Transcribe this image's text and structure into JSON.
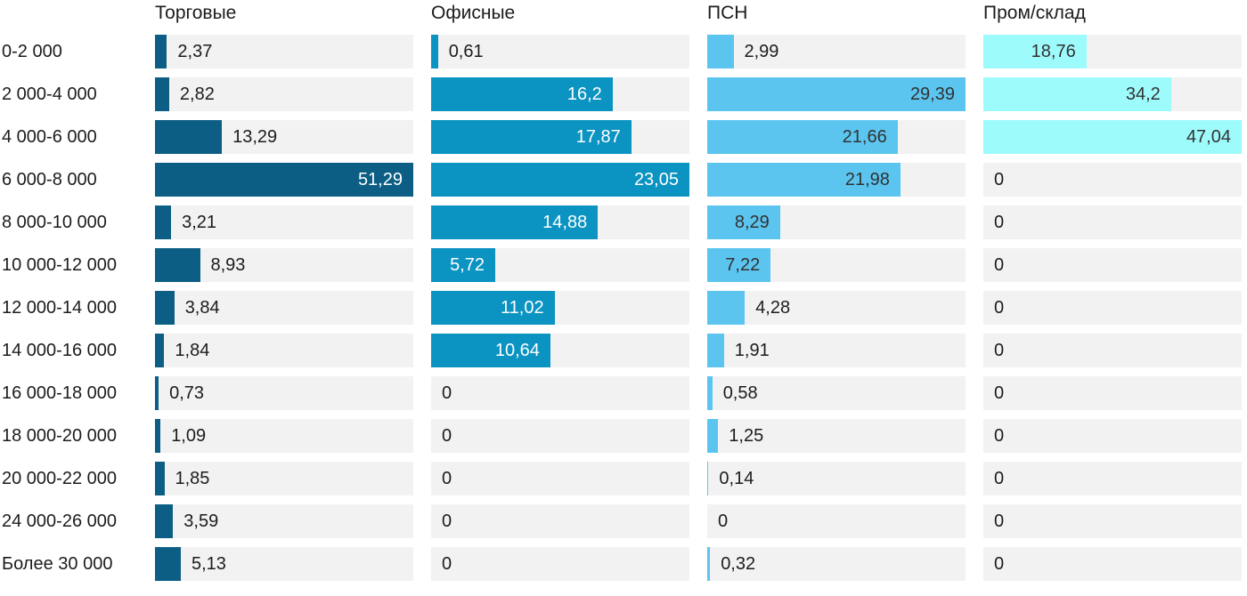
{
  "page": {
    "background": "#ffffff",
    "text_color": "#1c1c1c",
    "track_color": "#f2f2f2"
  },
  "chart_data": {
    "type": "bar",
    "orientation": "horizontal",
    "value_format": "decimal-comma",
    "scaling": "each column scaled independently to its own maximum value",
    "grid": false,
    "legend_position": "column-headers-top",
    "track_color": "#f2f2f2",
    "categories": [
      "0-2 000",
      "2 000-4 000",
      "4 000-6 000",
      "6 000-8 000",
      "8 000-10 000",
      "10 000-12 000",
      "12 000-14 000",
      "14 000-16 000",
      "16 000-18 000",
      "18 000-20 000",
      "20 000-22 000",
      "24 000-26 000",
      "Более 30 000"
    ],
    "series": [
      {
        "name": "Торговые",
        "color": "#0c5e84",
        "inside_label_color": "#ffffff",
        "outside_label_color": "#1c1c1c",
        "values": [
          2.37,
          2.82,
          13.29,
          51.29,
          3.21,
          8.93,
          3.84,
          1.84,
          0.73,
          1.09,
          1.85,
          3.59,
          5.13
        ],
        "value_labels": [
          "2,37",
          "2,82",
          "13,29",
          "51,29",
          "3,21",
          "8,93",
          "3,84",
          "1,84",
          "0,73",
          "1,09",
          "1,85",
          "3,59",
          "5,13"
        ]
      },
      {
        "name": "Офисные",
        "color": "#0b93c1",
        "inside_label_color": "#ffffff",
        "outside_label_color": "#1c1c1c",
        "values": [
          0.61,
          16.2,
          17.87,
          23.05,
          14.88,
          5.72,
          11.02,
          10.64,
          0,
          0,
          0,
          0,
          0
        ],
        "value_labels": [
          "0,61",
          "16,2",
          "17,87",
          "23,05",
          "14,88",
          "5,72",
          "11,02",
          "10,64",
          "0",
          "0",
          "0",
          "0",
          "0"
        ]
      },
      {
        "name": "ПСН",
        "color": "#5bc5f0",
        "inside_label_color": "#323232",
        "outside_label_color": "#1c1c1c",
        "values": [
          2.99,
          29.39,
          21.66,
          21.98,
          8.29,
          7.22,
          4.28,
          1.91,
          0.58,
          1.25,
          0.14,
          0,
          0.32
        ],
        "value_labels": [
          "2,99",
          "29,39",
          "21,66",
          "21,98",
          "8,29",
          "7,22",
          "4,28",
          "1,91",
          "0,58",
          "1,25",
          "0,14",
          "0",
          "0,32"
        ]
      },
      {
        "name": "Пром/склад",
        "color": "#9efbfc",
        "inside_label_color": "#323232",
        "outside_label_color": "#1c1c1c",
        "values": [
          18.76,
          34.2,
          47.04,
          0,
          0,
          0,
          0,
          0,
          0,
          0,
          0,
          0,
          0
        ],
        "value_labels": [
          "18,76",
          "34,2",
          "47,04",
          "0",
          "0",
          "0",
          "0",
          "0",
          "0",
          "0",
          "0",
          "0",
          "0"
        ]
      }
    ]
  }
}
